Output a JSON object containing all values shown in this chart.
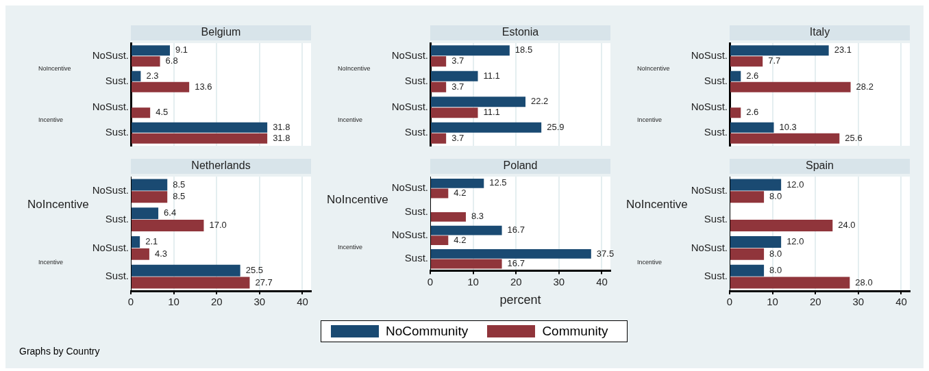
{
  "chart_data": [
    {
      "type": "bar",
      "orientation": "horizontal",
      "title": "Belgium",
      "categories": [
        "NoSust.",
        "Sust.",
        "NoSust.",
        "Sust."
      ],
      "annotations": [
        "NoIncentive",
        "Incentive"
      ],
      "xlim": [
        0,
        42
      ],
      "xticks": [
        0,
        10,
        20,
        30,
        40
      ],
      "grid": "x",
      "tick_labels": "y",
      "legend": false,
      "series": [
        {
          "color": "#1a4a72",
          "values": [
            9.1,
            2.3,
            null,
            31.8
          ],
          "value_labels": [
            "9.1",
            "2.3",
            null,
            "31.8"
          ]
        },
        {
          "color": "#90353b",
          "values": [
            6.8,
            13.6,
            4.5,
            31.8
          ],
          "value_labels": [
            "6.8",
            "13.6",
            "4.5",
            "31.8"
          ]
        }
      ]
    },
    {
      "type": "bar",
      "orientation": "horizontal",
      "title": "Estonia",
      "categories": [
        "NoSust.",
        "Sust.",
        "NoSust.",
        "Sust."
      ],
      "annotations": [
        "NoIncentive",
        "Incentive"
      ],
      "xlim": [
        0,
        42
      ],
      "xticks": [
        0,
        10,
        20,
        30,
        40
      ],
      "grid": "x",
      "tick_labels": "y",
      "legend": false,
      "series": [
        {
          "color": "#1a4a72",
          "values": [
            18.5,
            11.1,
            22.2,
            25.9
          ],
          "value_labels": [
            "18.5",
            "11.1",
            "22.2",
            "25.9"
          ]
        },
        {
          "color": "#90353b",
          "values": [
            3.7,
            3.7,
            11.1,
            3.7
          ],
          "value_labels": [
            "3.7",
            "3.7",
            "11.1",
            "3.7"
          ]
        }
      ]
    },
    {
      "type": "bar",
      "orientation": "horizontal",
      "title": "Italy",
      "categories": [
        "NoSust.",
        "Sust.",
        "NoSust.",
        "Sust."
      ],
      "annotations": [
        "NoIncentive",
        "Incentive"
      ],
      "xlim": [
        0,
        42
      ],
      "xticks": [
        0,
        10,
        20,
        30,
        40
      ],
      "grid": "x",
      "tick_labels": "y",
      "legend": false,
      "series": [
        {
          "color": "#1a4a72",
          "values": [
            23.1,
            2.6,
            null,
            10.3
          ],
          "value_labels": [
            "23.1",
            "2.6",
            null,
            "10.3"
          ]
        },
        {
          "color": "#90353b",
          "values": [
            7.7,
            28.2,
            2.6,
            25.6
          ],
          "value_labels": [
            "7.7",
            "28.2",
            "2.6",
            "25.6"
          ]
        }
      ]
    },
    {
      "type": "bar",
      "orientation": "horizontal",
      "title": "Netherlands",
      "categories": [
        "NoSust.",
        "Sust.",
        "NoSust.",
        "Sust."
      ],
      "annotations": [
        "NoIncentive",
        "Incentive",
        "Graphs by Country"
      ],
      "xlim": [
        0,
        42
      ],
      "xticks": [
        0,
        10,
        20,
        30,
        40
      ],
      "grid": "x",
      "legend": false,
      "series": [
        {
          "color": "#1a4a72",
          "values": [
            8.5,
            6.4,
            2.1,
            25.5
          ],
          "value_labels": [
            "8.5",
            "6.4",
            "2.1",
            "25.5"
          ]
        },
        {
          "color": "#90353b",
          "values": [
            8.5,
            17.0,
            4.3,
            27.7
          ],
          "value_labels": [
            "8.5",
            "17.0",
            "4.3",
            "27.7"
          ]
        }
      ]
    },
    {
      "type": "bar",
      "orientation": "horizontal",
      "title": "Poland",
      "xlabel": "percent",
      "categories": [
        "NoSust.",
        "Sust.",
        "NoSust.",
        "Sust."
      ],
      "annotations": [
        "NoIncentive",
        "Incentive"
      ],
      "xlim": [
        0,
        42
      ],
      "xticks": [
        0,
        10,
        20,
        30,
        40
      ],
      "grid": "x",
      "legend": "bottom",
      "series": [
        {
          "name": "NoCommunity",
          "color": "#1a4a72",
          "values": [
            12.5,
            null,
            16.7,
            37.5
          ],
          "value_labels": [
            "12.5",
            null,
            "16.7",
            "37.5"
          ]
        },
        {
          "name": "Community",
          "color": "#90353b",
          "values": [
            4.2,
            8.3,
            4.2,
            16.7
          ],
          "value_labels": [
            "4.2",
            "8.3",
            "4.2",
            "16.7"
          ]
        }
      ]
    },
    {
      "type": "bar",
      "orientation": "horizontal",
      "title": "Spain",
      "categories": [
        "NoSust.",
        "Sust.",
        "NoSust.",
        "Sust."
      ],
      "annotations": [
        "NoIncentive",
        "Incentive"
      ],
      "xlim": [
        0,
        42
      ],
      "xticks": [
        0,
        10,
        20,
        30,
        40
      ],
      "grid": "x",
      "legend": false,
      "series": [
        {
          "color": "#1a4a72",
          "values": [
            12.0,
            null,
            12.0,
            8.0
          ],
          "value_labels": [
            "12.0",
            null,
            "12.0",
            "8.0"
          ]
        },
        {
          "color": "#90353b",
          "values": [
            8.0,
            24.0,
            8.0,
            28.0
          ],
          "value_labels": [
            "8.0",
            "24.0",
            "8.0",
            "28.0"
          ]
        }
      ]
    }
  ]
}
